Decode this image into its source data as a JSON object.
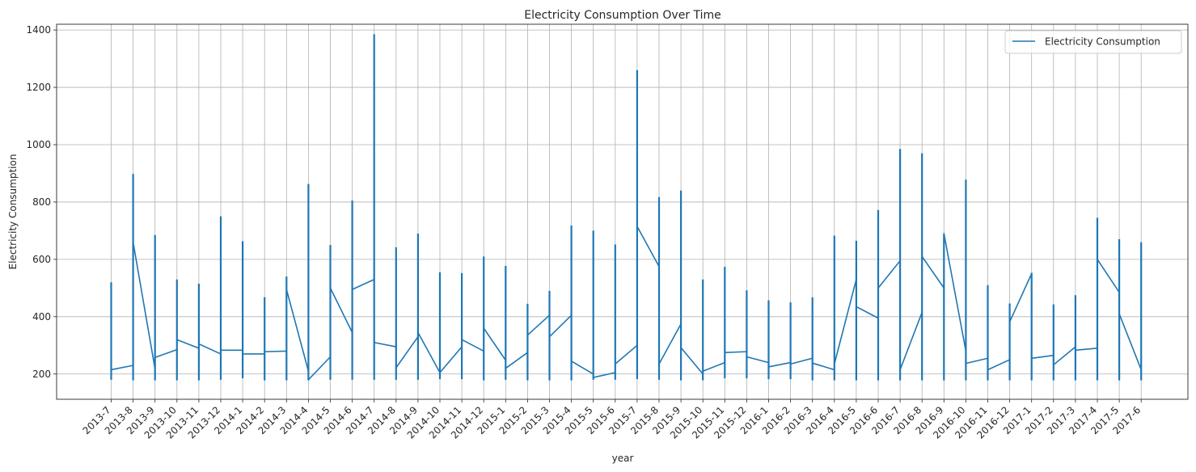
{
  "chart_data": {
    "type": "line",
    "title": "Electricity Consumption Over Time",
    "xlabel": "year",
    "ylabel": "Electricity Consumption",
    "ylim": [
      112,
      1420
    ],
    "yticks": [
      200,
      400,
      600,
      800,
      1000,
      1200,
      1400
    ],
    "grid": true,
    "legend_position": "top-right",
    "color": "#1f77b4",
    "categories": [
      "2013-7",
      "2013-8",
      "2013-9",
      "2013-10",
      "2013-11",
      "2013-12",
      "2014-1",
      "2014-2",
      "2014-3",
      "2014-4",
      "2014-5",
      "2014-6",
      "2014-7",
      "2014-8",
      "2014-9",
      "2014-10",
      "2014-11",
      "2014-12",
      "2015-1",
      "2015-2",
      "2015-3",
      "2015-4",
      "2015-5",
      "2015-6",
      "2015-7",
      "2015-8",
      "2015-9",
      "2015-10",
      "2015-11",
      "2015-12",
      "2016-1",
      "2016-2",
      "2016-3",
      "2016-4",
      "2016-5",
      "2016-6",
      "2016-7",
      "2016-8",
      "2016-9",
      "2016-10",
      "2016-11",
      "2016-12",
      "2017-1",
      "2017-2",
      "2017-3",
      "2017-4",
      "2017-5",
      "2017-6"
    ],
    "series": [
      {
        "name": "Electricity Consumption",
        "min": [
          180,
          178,
          178,
          178,
          178,
          180,
          185,
          178,
          178,
          178,
          180,
          180,
          180,
          180,
          180,
          182,
          182,
          178,
          180,
          178,
          178,
          178,
          180,
          180,
          182,
          180,
          178,
          178,
          185,
          185,
          182,
          182,
          178,
          178,
          178,
          178,
          178,
          178,
          178,
          178,
          178,
          178,
          178,
          178,
          178,
          178,
          178,
          178
        ],
        "max": [
          520,
          898,
          685,
          530,
          515,
          750,
          663,
          468,
          540,
          863,
          650,
          805,
          1385,
          642,
          690,
          555,
          552,
          610,
          577,
          445,
          490,
          718,
          700,
          652,
          1260,
          817,
          840,
          530,
          574,
          492,
          457,
          450,
          468,
          683,
          665,
          772,
          985,
          970,
          688,
          878,
          510,
          446,
          553,
          443,
          475,
          745,
          670,
          660
        ],
        "enter": [
          215,
          230,
          218,
          285,
          290,
          270,
          283,
          270,
          280,
          210,
          260,
          345,
          530,
          295,
          330,
          205,
          295,
          280,
          248,
          275,
          405,
          405,
          200,
          205,
          300,
          575,
          375,
          200,
          240,
          278,
          240,
          240,
          255,
          215,
          530,
          395,
          595,
          415,
          500,
          280,
          255,
          250,
          550,
          265,
          295,
          290,
          485,
          215
        ],
        "exit": [
          215,
          660,
          258,
          320,
          305,
          283,
          270,
          278,
          495,
          180,
          500,
          495,
          310,
          222,
          345,
          205,
          320,
          360,
          220,
          336,
          330,
          245,
          188,
          235,
          715,
          235,
          292,
          210,
          275,
          260,
          225,
          235,
          238,
          235,
          435,
          500,
          215,
          610,
          690,
          237,
          215,
          382,
          255,
          232,
          283,
          600,
          410,
          210
        ]
      }
    ]
  }
}
